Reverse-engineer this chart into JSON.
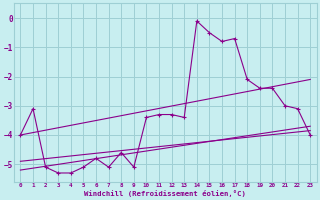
{
  "xlabel": "Windchill (Refroidissement éolien,°C)",
  "xlim": [
    -0.5,
    23.5
  ],
  "ylim": [
    -5.6,
    0.5
  ],
  "yticks": [
    0,
    -1,
    -2,
    -3,
    -4,
    -5
  ],
  "xticks": [
    0,
    1,
    2,
    3,
    4,
    5,
    6,
    7,
    8,
    9,
    10,
    11,
    12,
    13,
    14,
    15,
    16,
    17,
    18,
    19,
    20,
    21,
    22,
    23
  ],
  "bg_color": "#c8eef0",
  "grid_color": "#9ecfd4",
  "line_color": "#8b008b",
  "line1_x": [
    0,
    1,
    2,
    3,
    4,
    5,
    6,
    7,
    8,
    9,
    10,
    11,
    12,
    13,
    14,
    15,
    16,
    17,
    18,
    19,
    20,
    21,
    22,
    23
  ],
  "line1_y": [
    -4.0,
    -3.1,
    -5.1,
    -5.3,
    -5.3,
    -5.1,
    -4.8,
    -5.1,
    -4.6,
    -5.1,
    -3.4,
    -3.3,
    -3.3,
    -3.4,
    -0.1,
    -0.5,
    -0.8,
    -0.7,
    -2.1,
    -2.4,
    -2.4,
    -3.0,
    -3.1,
    -4.0
  ],
  "line2_x": [
    0,
    23
  ],
  "line2_y": [
    -4.0,
    -2.1
  ],
  "line3_x": [
    0,
    23
  ],
  "line3_y": [
    -4.9,
    -3.85
  ],
  "line4_x": [
    0,
    23
  ],
  "line4_y": [
    -5.2,
    -3.7
  ]
}
